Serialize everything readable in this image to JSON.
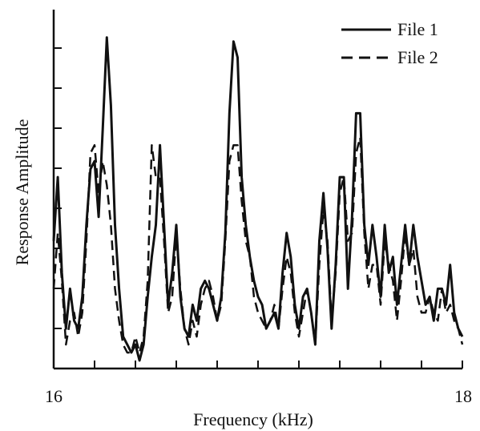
{
  "chart_data": {
    "type": "line",
    "title": "",
    "xlabel": "Frequency (kHz)",
    "ylabel": "Response Amplitude",
    "xlim": [
      16,
      18
    ],
    "x_tick_labels": [
      "16",
      "18"
    ],
    "y_tick_labels_shown": false,
    "grid": false,
    "legend_position": "top-right",
    "series": [
      {
        "name": "File 1",
        "style": "solid",
        "color": "#111111",
        "x": [
          16.0,
          16.02,
          16.04,
          16.06,
          16.08,
          16.1,
          16.12,
          16.14,
          16.16,
          16.18,
          16.2,
          16.22,
          16.24,
          16.26,
          16.28,
          16.3,
          16.32,
          16.34,
          16.36,
          16.38,
          16.4,
          16.42,
          16.44,
          16.46,
          16.48,
          16.5,
          16.52,
          16.54,
          16.56,
          16.58,
          16.6,
          16.62,
          16.64,
          16.66,
          16.68,
          16.7,
          16.72,
          16.74,
          16.76,
          16.78,
          16.8,
          16.82,
          16.84,
          16.86,
          16.88,
          16.9,
          16.92,
          16.94,
          16.96,
          16.98,
          17.0,
          17.02,
          17.04,
          17.06,
          17.08,
          17.1,
          17.12,
          17.14,
          17.16,
          17.18,
          17.2,
          17.22,
          17.24,
          17.26,
          17.28,
          17.3,
          17.32,
          17.34,
          17.36,
          17.38,
          17.4,
          17.42,
          17.44,
          17.46,
          17.48,
          17.5,
          17.52,
          17.54,
          17.56,
          17.58,
          17.6,
          17.62,
          17.64,
          17.66,
          17.68,
          17.7,
          17.72,
          17.74,
          17.76,
          17.78,
          17.8,
          17.82,
          17.84,
          17.86,
          17.88,
          17.9,
          17.92,
          17.94,
          17.96,
          17.98,
          18.0
        ],
        "y": [
          3.2,
          4.8,
          2.4,
          1.0,
          2.0,
          1.2,
          1.0,
          1.8,
          3.6,
          5.0,
          5.2,
          3.8,
          6.0,
          8.3,
          6.6,
          3.6,
          2.0,
          0.8,
          0.6,
          0.4,
          0.6,
          0.2,
          0.6,
          1.8,
          2.8,
          3.6,
          5.6,
          3.6,
          1.6,
          2.4,
          3.6,
          1.8,
          1.0,
          0.8,
          1.6,
          1.2,
          2.0,
          2.2,
          2.0,
          1.6,
          1.2,
          1.8,
          3.4,
          6.4,
          8.2,
          7.8,
          4.8,
          3.6,
          2.8,
          2.2,
          1.8,
          1.6,
          1.0,
          1.2,
          1.4,
          1.0,
          2.4,
          3.4,
          2.8,
          1.6,
          1.0,
          1.8,
          2.0,
          1.4,
          0.6,
          3.2,
          4.4,
          3.0,
          1.0,
          2.6,
          4.8,
          4.8,
          2.0,
          3.8,
          6.4,
          6.4,
          3.6,
          2.6,
          3.6,
          2.8,
          1.8,
          3.6,
          2.4,
          2.8,
          1.6,
          2.6,
          3.6,
          2.6,
          3.6,
          2.8,
          2.2,
          1.6,
          1.8,
          1.2,
          2.0,
          2.0,
          1.6,
          2.6,
          1.4,
          1.0,
          0.8
        ]
      },
      {
        "name": "File 2",
        "style": "dashed",
        "color": "#111111",
        "x": [
          16.0,
          16.02,
          16.04,
          16.06,
          16.08,
          16.1,
          16.12,
          16.14,
          16.16,
          16.18,
          16.2,
          16.22,
          16.24,
          16.26,
          16.28,
          16.3,
          16.32,
          16.34,
          16.36,
          16.38,
          16.4,
          16.42,
          16.44,
          16.46,
          16.48,
          16.5,
          16.52,
          16.54,
          16.56,
          16.58,
          16.6,
          16.62,
          16.64,
          16.66,
          16.68,
          16.7,
          16.72,
          16.74,
          16.76,
          16.78,
          16.8,
          16.82,
          16.84,
          16.86,
          16.88,
          16.9,
          16.92,
          16.94,
          16.96,
          16.98,
          17.0,
          17.02,
          17.04,
          17.06,
          17.08,
          17.1,
          17.12,
          17.14,
          17.16,
          17.18,
          17.2,
          17.22,
          17.24,
          17.26,
          17.28,
          17.3,
          17.32,
          17.34,
          17.36,
          17.38,
          17.4,
          17.42,
          17.44,
          17.46,
          17.48,
          17.5,
          17.52,
          17.54,
          17.56,
          17.58,
          17.6,
          17.62,
          17.64,
          17.66,
          17.68,
          17.7,
          17.72,
          17.74,
          17.76,
          17.78,
          17.8,
          17.82,
          17.84,
          17.86,
          17.88,
          17.9,
          17.92,
          17.94,
          17.96,
          17.98,
          18.0
        ],
        "y": [
          2.0,
          3.4,
          2.2,
          0.6,
          1.2,
          1.4,
          0.8,
          1.4,
          3.2,
          5.4,
          5.6,
          4.4,
          5.2,
          4.6,
          3.6,
          2.0,
          1.2,
          0.6,
          0.4,
          0.4,
          0.8,
          0.4,
          0.8,
          2.2,
          5.6,
          4.8,
          4.8,
          3.2,
          1.4,
          1.8,
          3.4,
          2.0,
          1.0,
          0.6,
          1.2,
          0.8,
          1.6,
          2.0,
          2.2,
          1.8,
          1.2,
          1.6,
          3.2,
          5.2,
          5.6,
          5.6,
          4.2,
          3.2,
          2.8,
          1.8,
          1.4,
          1.2,
          1.0,
          1.2,
          1.6,
          1.0,
          2.0,
          2.8,
          2.4,
          1.4,
          0.8,
          1.4,
          2.0,
          1.4,
          0.6,
          2.6,
          4.0,
          3.2,
          1.2,
          2.4,
          4.4,
          4.8,
          3.2,
          3.4,
          5.4,
          5.8,
          3.4,
          2.0,
          2.6,
          2.6,
          1.6,
          3.2,
          2.6,
          2.2,
          1.2,
          2.2,
          3.4,
          2.6,
          3.0,
          1.8,
          1.4,
          1.4,
          1.8,
          1.4,
          1.2,
          2.0,
          1.4,
          1.6,
          1.2,
          1.0,
          0.6
        ]
      }
    ]
  }
}
